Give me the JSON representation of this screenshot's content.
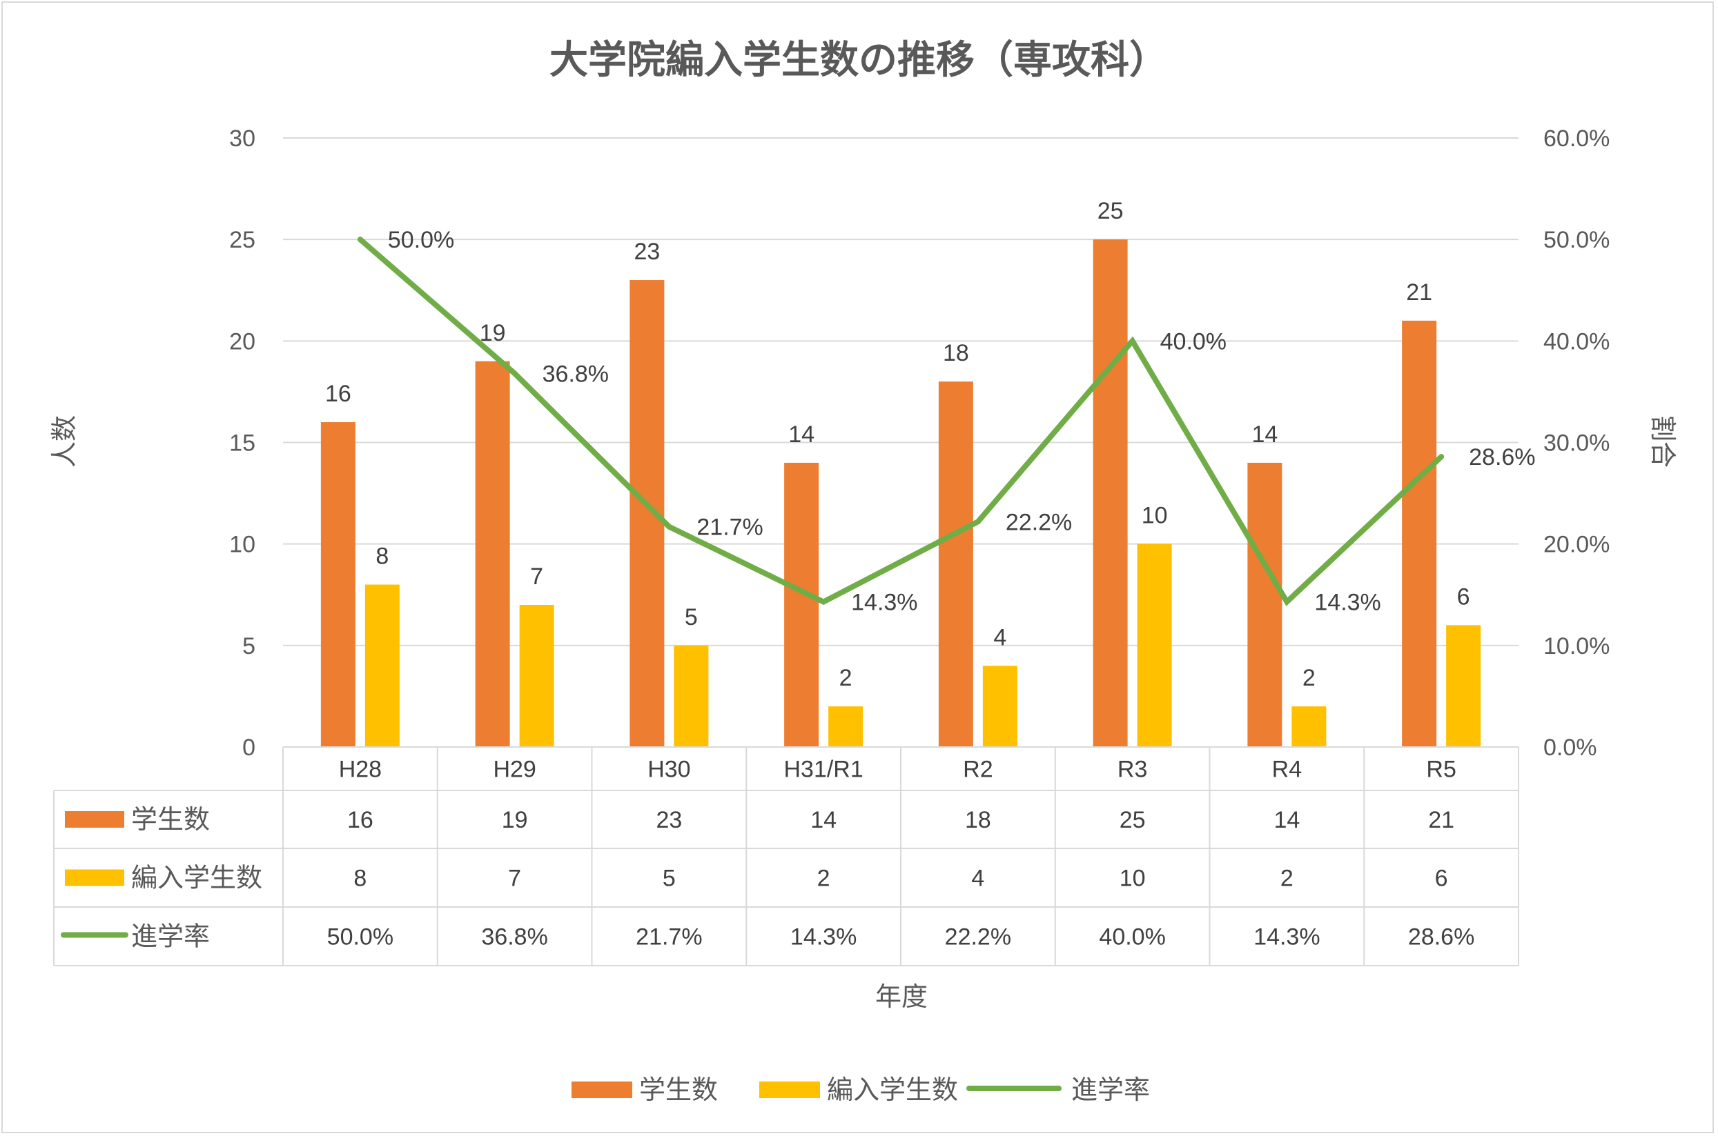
{
  "chart_data": {
    "type": "bar",
    "title": "大学院編入学生数の推移（専攻科）",
    "categories": [
      "H28",
      "H29",
      "H30",
      "H31/R1",
      "R2",
      "R3",
      "R4",
      "R5"
    ],
    "series": [
      {
        "name": "学生数",
        "type": "bar",
        "axis": "left",
        "values": [
          16,
          19,
          23,
          14,
          18,
          25,
          14,
          21
        ],
        "labels": [
          "16",
          "19",
          "23",
          "14",
          "18",
          "25",
          "14",
          "21"
        ],
        "color": "#ED7D31"
      },
      {
        "name": "編入学生数",
        "type": "bar",
        "axis": "left",
        "values": [
          8,
          7,
          5,
          2,
          4,
          10,
          2,
          6
        ],
        "labels": [
          "8",
          "7",
          "5",
          "2",
          "4",
          "10",
          "2",
          "6"
        ],
        "color": "#FFC000"
      },
      {
        "name": "進学率",
        "type": "line",
        "axis": "right",
        "values": [
          50.0,
          36.8,
          21.7,
          14.3,
          22.2,
          40.0,
          14.3,
          28.6
        ],
        "labels": [
          "50.0%",
          "36.8%",
          "21.7%",
          "14.3%",
          "22.2%",
          "40.0%",
          "14.3%",
          "28.6%"
        ],
        "color": "#70AD47"
      }
    ],
    "xlabel": "年度",
    "ylabel": "人数",
    "y2label": "割合",
    "ylim": [
      0,
      30
    ],
    "y2lim": [
      0,
      60
    ],
    "yticks": [
      "0",
      "5",
      "10",
      "15",
      "20",
      "25",
      "30"
    ],
    "y2ticks": [
      "0.0%",
      "10.0%",
      "20.0%",
      "30.0%",
      "40.0%",
      "50.0%",
      "60.0%"
    ],
    "grid": true,
    "data_table": true,
    "legend_position": "bottom",
    "gridline_color": "#d9d9d9",
    "text_color": "#595959"
  }
}
